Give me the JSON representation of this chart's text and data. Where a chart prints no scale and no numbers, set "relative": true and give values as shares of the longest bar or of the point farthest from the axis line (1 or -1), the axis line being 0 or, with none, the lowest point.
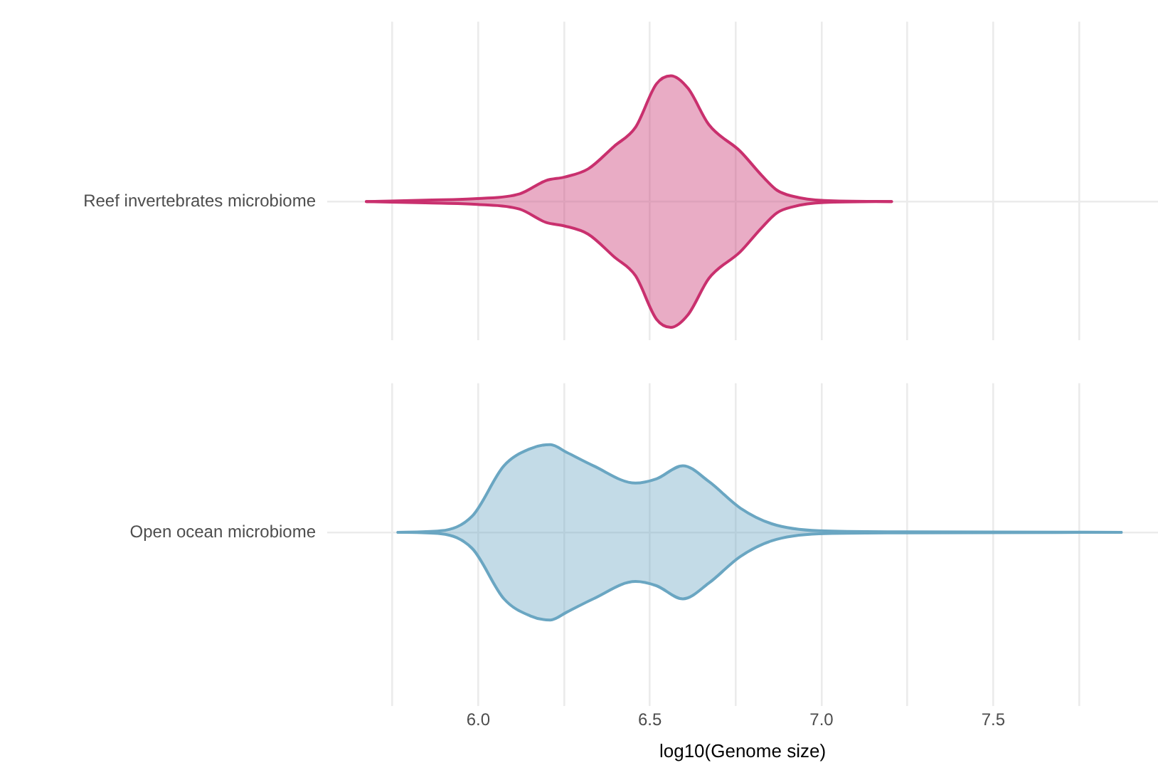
{
  "chart_data": [
    {
      "type": "area",
      "relative": true,
      "xlim": [
        5.56,
        7.98
      ],
      "tick_labels": false,
      "grid": true,
      "legend": false,
      "xticks": [
        {
          "value": 5.75,
          "label": null
        },
        {
          "value": 6,
          "label": null
        },
        {
          "value": 6.25,
          "label": null
        },
        {
          "value": 6.5,
          "label": null
        },
        {
          "value": 6.75,
          "label": null
        },
        {
          "value": 7,
          "label": null
        },
        {
          "value": 7.25,
          "label": null
        },
        {
          "value": 7.5,
          "label": null
        },
        {
          "value": 7.75,
          "label": null
        }
      ],
      "series": [
        {
          "name": "Reef invertebrates microbiome",
          "color": "#c9306e",
          "x": [
            5.674,
            5.846,
            5.998,
            6.121,
            6.198,
            6.251,
            6.32,
            6.396,
            6.458,
            6.519,
            6.561,
            6.611,
            6.672,
            6.763,
            6.825,
            6.87,
            6.916,
            7.008,
            7.204
          ],
          "values": [
            0,
            0.011,
            0.023,
            0.061,
            0.167,
            0.194,
            0.259,
            0.44,
            0.59,
            0.935,
            1.0,
            0.9,
            0.61,
            0.4,
            0.21,
            0.09,
            0.042,
            0.008,
            0
          ]
        }
      ]
    },
    {
      "type": "area",
      "relative": true,
      "xlabel": "log10(Genome size)",
      "xlim": [
        5.56,
        7.98
      ],
      "grid": true,
      "legend": false,
      "xticks": [
        {
          "value": 5.75,
          "label": null
        },
        {
          "value": 6,
          "label": "6.0"
        },
        {
          "value": 6.25,
          "label": null
        },
        6.5,
        {
          "value": 6.75,
          "label": null
        },
        {
          "value": 7,
          "label": "7.0"
        },
        {
          "value": 7.25,
          "label": null
        },
        7.5,
        {
          "value": 7.75,
          "label": null
        }
      ],
      "series": [
        {
          "name": "Open ocean microbiome",
          "color": "#6aa6c2",
          "x": [
            5.766,
            5.891,
            5.983,
            6.075,
            6.151,
            6.21,
            6.258,
            6.335,
            6.458,
            6.519,
            6.596,
            6.672,
            6.763,
            6.855,
            6.993,
            7.223,
            7.873
          ],
          "values": [
            0,
            0.017,
            0.187,
            0.759,
            0.952,
            1.0,
            0.91,
            0.759,
            0.561,
            0.609,
            0.759,
            0.578,
            0.277,
            0.097,
            0.017,
            0.006,
            0
          ]
        }
      ]
    }
  ]
}
